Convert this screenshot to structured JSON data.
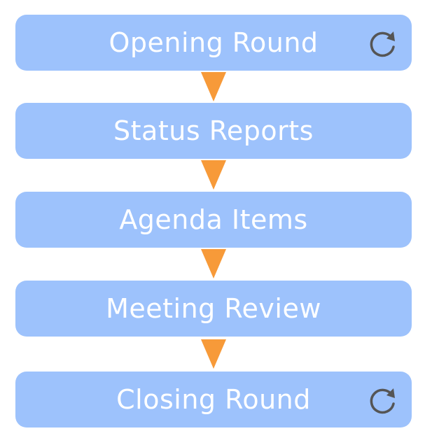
{
  "colors": {
    "box_fill": "#9dc2fc",
    "arrow_fill": "#f79a39",
    "icon_stroke": "#555555",
    "label_color": "#ffffff"
  },
  "steps": [
    {
      "label": "Opening Round",
      "repeat_icon": "refresh-icon"
    },
    {
      "label": "Status Reports"
    },
    {
      "label": "Agenda Items"
    },
    {
      "label": "Meeting Review"
    },
    {
      "label": "Closing Round",
      "repeat_icon": "refresh-icon"
    }
  ],
  "connector_icon": "down-triangle-arrow"
}
